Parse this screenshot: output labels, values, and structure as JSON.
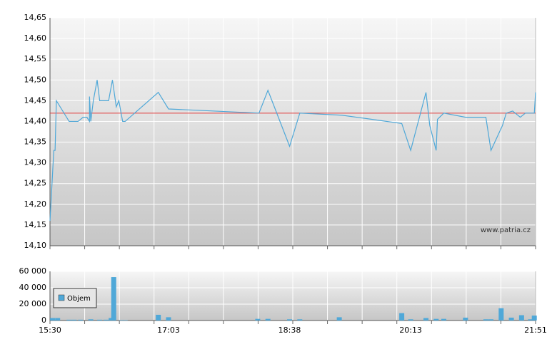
{
  "chart_data": [
    {
      "type": "line",
      "xlim": [
        "15:30",
        "21:51"
      ],
      "ylim": [
        14.1,
        14.65
      ],
      "yticks": [
        {
          "value": 14.1,
          "label": "14,10"
        },
        {
          "value": 14.15,
          "label": "14,15"
        },
        {
          "value": 14.2,
          "label": "14,20"
        },
        {
          "value": 14.25,
          "label": "14,25"
        },
        {
          "value": 14.3,
          "label": "14,30"
        },
        {
          "value": 14.35,
          "label": "14,35"
        },
        {
          "value": 14.4,
          "label": "14,40"
        },
        {
          "value": 14.45,
          "label": "14,45"
        },
        {
          "value": 14.5,
          "label": "14,50"
        },
        {
          "value": 14.55,
          "label": "14,55"
        },
        {
          "value": 14.6,
          "label": "14,60"
        },
        {
          "value": 14.65,
          "label": "14,65"
        }
      ],
      "grid": true,
      "watermark": "www.patria.cz",
      "reference_line": 14.42,
      "reference_color": "#e03c3c",
      "color": "#4fa8d8",
      "x": [
        "15:30",
        "15:33",
        "15:34",
        "15:35",
        "15:45",
        "15:52",
        "15:56",
        "15:59",
        "16:01",
        "16:01",
        "16:02",
        "16:04",
        "16:07",
        "16:09",
        "16:16",
        "16:19",
        "16:22",
        "16:24",
        "16:27",
        "16:29",
        "16:55",
        "17:03",
        "18:14",
        "18:21",
        "18:38",
        "18:46",
        "19:19",
        "20:06",
        "20:13",
        "20:25",
        "20:28",
        "20:33",
        "20:34",
        "20:39",
        "20:56",
        "21:12",
        "21:16",
        "21:25",
        "21:28",
        "21:33",
        "21:39",
        "21:43",
        "21:50",
        "21:51"
      ],
      "values": [
        14.16,
        14.33,
        14.33,
        14.45,
        14.4,
        14.4,
        14.41,
        14.41,
        14.4,
        14.46,
        14.4,
        14.45,
        14.5,
        14.45,
        14.45,
        14.5,
        14.435,
        14.45,
        14.4,
        14.4,
        14.47,
        14.43,
        14.42,
        14.475,
        14.34,
        14.42,
        14.415,
        14.395,
        14.33,
        14.47,
        14.39,
        14.33,
        14.405,
        14.42,
        14.41,
        14.41,
        14.33,
        14.39,
        14.42,
        14.425,
        14.41,
        14.42,
        14.42,
        14.47
      ]
    },
    {
      "type": "bar",
      "xlim": [
        "15:30",
        "21:51"
      ],
      "xticks": [
        "15:30",
        "17:03",
        "18:38",
        "20:13",
        "21:51"
      ],
      "ylim": [
        0,
        60000
      ],
      "yticks": [
        0,
        {
          "value": 20000,
          "label": "20 000"
        },
        {
          "value": 40000,
          "label": "40 000"
        },
        {
          "value": 60000,
          "label": "60 000"
        }
      ],
      "grid": true,
      "legend": "Objem",
      "color": "#4fa8d8",
      "x": [
        "15:32",
        "15:36",
        "15:45",
        "15:49",
        "15:54",
        "16:02",
        "16:09",
        "16:14",
        "16:18",
        "16:20",
        "16:26",
        "16:29",
        "16:55",
        "17:03",
        "18:13",
        "18:21",
        "18:38",
        "18:46",
        "19:17",
        "20:06",
        "20:13",
        "20:25",
        "20:33",
        "20:39",
        "20:56",
        "21:12",
        "21:16",
        "21:24",
        "21:32",
        "21:40",
        "21:47",
        "21:50"
      ],
      "values": [
        3000,
        3000,
        1000,
        1000,
        1000,
        1500,
        1000,
        1000,
        3000,
        53000,
        500,
        500,
        7000,
        4000,
        2000,
        2000,
        1500,
        1500,
        4000,
        9000,
        1500,
        3000,
        2000,
        2000,
        3500,
        1500,
        1500,
        15000,
        3500,
        6500,
        1500,
        6000
      ]
    }
  ]
}
